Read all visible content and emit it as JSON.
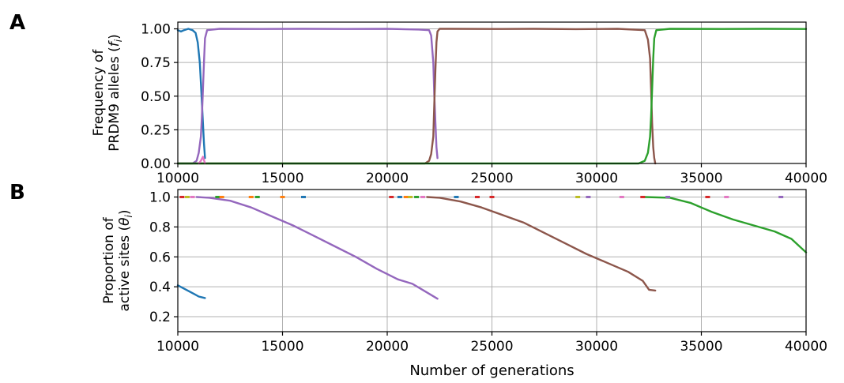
{
  "figure": {
    "panel_a_letter": "A",
    "panel_b_letter": "B"
  },
  "chart_data": [
    {
      "id": "A",
      "type": "line",
      "ylabel_line1": "Frequency of",
      "ylabel_line2": "PRDM9 alleles (",
      "ylabel_symbol": "f",
      "ylabel_sub": "i",
      "ylabel_close": ")",
      "xlim": [
        10000,
        40000
      ],
      "ylim": [
        0,
        1.05
      ],
      "xticks": [
        10000,
        15000,
        20000,
        25000,
        30000,
        35000,
        40000
      ],
      "xtick_labels": [
        "10000",
        "15000",
        "20000",
        "25000",
        "30000",
        "35000",
        "40000"
      ],
      "yticks": [
        0,
        0.25,
        0.5,
        0.75,
        1.0
      ],
      "ytick_labels": [
        "0.00",
        "0.25",
        "0.50",
        "0.75",
        "1.00"
      ],
      "grid": true,
      "series": [
        {
          "color": "#1f77b4",
          "x": [
            10000,
            10150,
            10300,
            10500,
            10700,
            10850,
            10950,
            11050,
            11100,
            11150,
            11200,
            11250,
            11300
          ],
          "y": [
            0.99,
            0.98,
            0.99,
            1.0,
            0.99,
            0.97,
            0.9,
            0.75,
            0.6,
            0.45,
            0.3,
            0.15,
            0.04
          ]
        },
        {
          "color": "#9467bd",
          "x": [
            10000,
            10700,
            10900,
            11000,
            11100,
            11150,
            11200,
            11250,
            11300,
            11400,
            12000,
            14000,
            16000,
            18000,
            20000,
            21500,
            22000,
            22100,
            22200,
            22250,
            22300,
            22350,
            22400
          ],
          "y": [
            0.0,
            0.0,
            0.02,
            0.08,
            0.2,
            0.35,
            0.55,
            0.75,
            0.93,
            0.99,
            1.0,
            0.999,
            1.0,
            0.999,
            1.0,
            0.995,
            0.99,
            0.95,
            0.75,
            0.5,
            0.3,
            0.12,
            0.04
          ]
        },
        {
          "color": "#8c564b",
          "x": [
            10000,
            21800,
            22000,
            22100,
            22200,
            22250,
            22300,
            22350,
            22400,
            22500,
            23000,
            25000,
            27000,
            29000,
            31000,
            32300,
            32450,
            32550,
            32600,
            32650,
            32700,
            32750,
            32800
          ],
          "y": [
            0.0,
            0.0,
            0.02,
            0.07,
            0.2,
            0.45,
            0.7,
            0.9,
            0.98,
            1.0,
            1.0,
            0.999,
            1.0,
            0.998,
            1.0,
            0.99,
            0.92,
            0.78,
            0.55,
            0.3,
            0.12,
            0.04,
            0.0
          ]
        },
        {
          "color": "#2ca02c",
          "x": [
            10000,
            32000,
            32300,
            32450,
            32550,
            32600,
            32650,
            32700,
            32750,
            32850,
            33500,
            36000,
            38000,
            40000
          ],
          "y": [
            0.0,
            0.0,
            0.02,
            0.08,
            0.2,
            0.35,
            0.55,
            0.78,
            0.93,
            0.99,
            1.0,
            0.999,
            1.0,
            0.999
          ]
        },
        {
          "color": "#e377c2",
          "x": [
            11000,
            11100,
            11200,
            11300
          ],
          "y": [
            0.0,
            0.02,
            0.05,
            0.0
          ]
        }
      ]
    },
    {
      "id": "B",
      "type": "line",
      "ylabel_line1": "Proportion of",
      "ylabel_line2": "active sites (",
      "ylabel_symbol": "θ",
      "ylabel_sub": "i",
      "ylabel_close": ")",
      "xlabel": "Number of generations",
      "xlim": [
        10000,
        40000
      ],
      "ylim": [
        0.1,
        1.05
      ],
      "xticks": [
        10000,
        15000,
        20000,
        25000,
        30000,
        35000,
        40000
      ],
      "xtick_labels": [
        "10000",
        "15000",
        "20000",
        "25000",
        "30000",
        "35000",
        "40000"
      ],
      "yticks": [
        0.2,
        0.4,
        0.6,
        0.8,
        1.0
      ],
      "ytick_labels": [
        "0.2",
        "0.4",
        "0.6",
        "0.8",
        "1.0"
      ],
      "grid": true,
      "series": [
        {
          "color": "#1f77b4",
          "x": [
            10000,
            10400,
            10800,
            11000,
            11300
          ],
          "y": [
            0.41,
            0.38,
            0.35,
            0.335,
            0.325
          ]
        },
        {
          "color": "#9467bd",
          "x": [
            10900,
            11500,
            12500,
            13500,
            14500,
            15500,
            16500,
            17500,
            18500,
            19500,
            20500,
            21200,
            21800,
            22400
          ],
          "y": [
            1.0,
            0.995,
            0.975,
            0.93,
            0.87,
            0.81,
            0.74,
            0.67,
            0.6,
            0.52,
            0.45,
            0.42,
            0.37,
            0.32
          ]
        },
        {
          "color": "#8c564b",
          "x": [
            21900,
            22500,
            23500,
            24500,
            25500,
            26500,
            27500,
            28500,
            29500,
            30500,
            31500,
            32200,
            32500,
            32800
          ],
          "y": [
            1.0,
            0.995,
            0.97,
            0.93,
            0.88,
            0.83,
            0.76,
            0.69,
            0.62,
            0.56,
            0.5,
            0.44,
            0.38,
            0.375
          ]
        },
        {
          "color": "#2ca02c",
          "x": [
            32300,
            33500,
            34500,
            35500,
            36500,
            37500,
            38500,
            39300,
            40000
          ],
          "y": [
            1.0,
            0.995,
            0.96,
            0.9,
            0.85,
            0.81,
            0.77,
            0.72,
            0.63
          ]
        }
      ],
      "marker_row": {
        "y": 1.0,
        "points": [
          {
            "x": 10200,
            "color": "#d62728"
          },
          {
            "x": 10450,
            "color": "#bcbd22"
          },
          {
            "x": 10700,
            "color": "#e377c2"
          },
          {
            "x": 11900,
            "color": "#2ca02c"
          },
          {
            "x": 12100,
            "color": "#ff7f0e"
          },
          {
            "x": 13500,
            "color": "#ff7f0e"
          },
          {
            "x": 13800,
            "color": "#2ca02c"
          },
          {
            "x": 15000,
            "color": "#ff7f0e"
          },
          {
            "x": 16000,
            "color": "#1f77b4"
          },
          {
            "x": 20200,
            "color": "#d62728"
          },
          {
            "x": 20600,
            "color": "#1f77b4"
          },
          {
            "x": 20900,
            "color": "#ff7f0e"
          },
          {
            "x": 21100,
            "color": "#bcbd22"
          },
          {
            "x": 21400,
            "color": "#2ca02c"
          },
          {
            "x": 21700,
            "color": "#e377c2"
          },
          {
            "x": 23300,
            "color": "#1f77b4"
          },
          {
            "x": 24300,
            "color": "#d62728"
          },
          {
            "x": 25000,
            "color": "#d62728"
          },
          {
            "x": 29100,
            "color": "#bcbd22"
          },
          {
            "x": 29600,
            "color": "#9467bd"
          },
          {
            "x": 31200,
            "color": "#e377c2"
          },
          {
            "x": 32200,
            "color": "#d62728"
          },
          {
            "x": 33400,
            "color": "#9467bd"
          },
          {
            "x": 35300,
            "color": "#d62728"
          },
          {
            "x": 36200,
            "color": "#e377c2"
          },
          {
            "x": 38800,
            "color": "#9467bd"
          }
        ]
      }
    }
  ]
}
